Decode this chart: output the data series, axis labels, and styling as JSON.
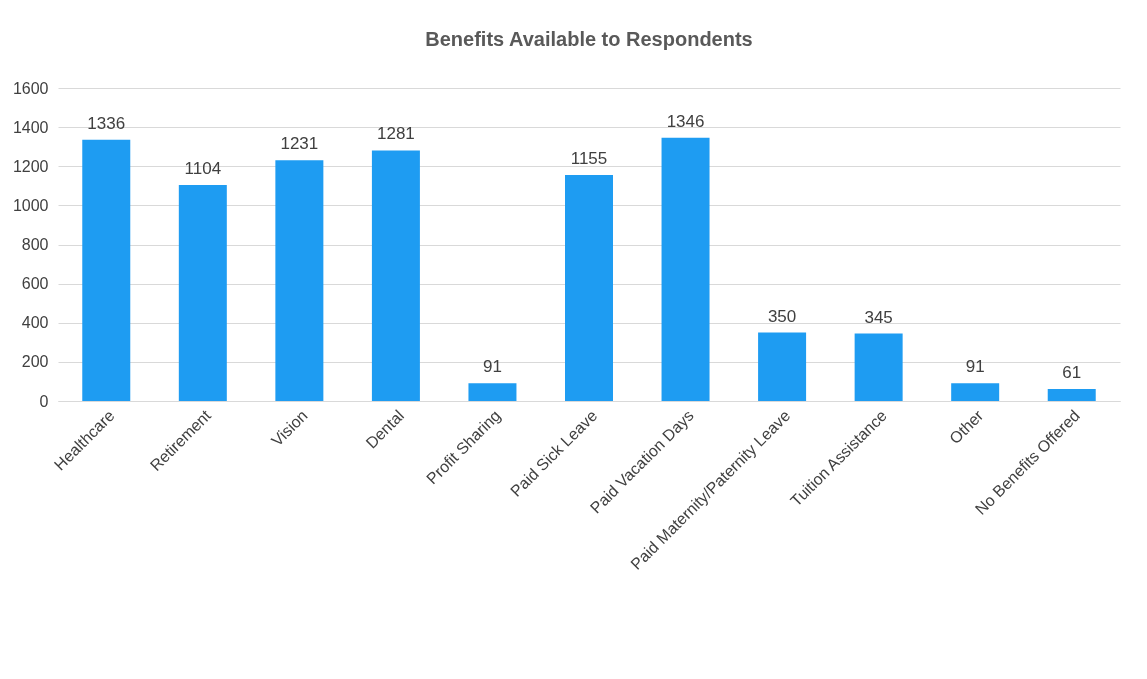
{
  "chart_data": {
    "type": "bar",
    "title": "Benefits Available to Respondents",
    "categories": [
      "Healthcare",
      "Retirement",
      "Vision",
      "Dental",
      "Profit Sharing",
      "Paid Sick Leave",
      "Paid Vacation Days",
      "Paid Maternity/Paternity Leave",
      "Tuition Assistance",
      "Other",
      "No Benefits Offered"
    ],
    "values": [
      1336,
      1104,
      1231,
      1281,
      91,
      1155,
      1346,
      350,
      345,
      91,
      61
    ],
    "color": "#1e9cf2",
    "ylim": [
      0,
      1600
    ],
    "yticks": [
      0,
      200,
      400,
      600,
      800,
      1000,
      1200,
      1400,
      1600
    ],
    "grid": "y",
    "data_labels": true
  }
}
